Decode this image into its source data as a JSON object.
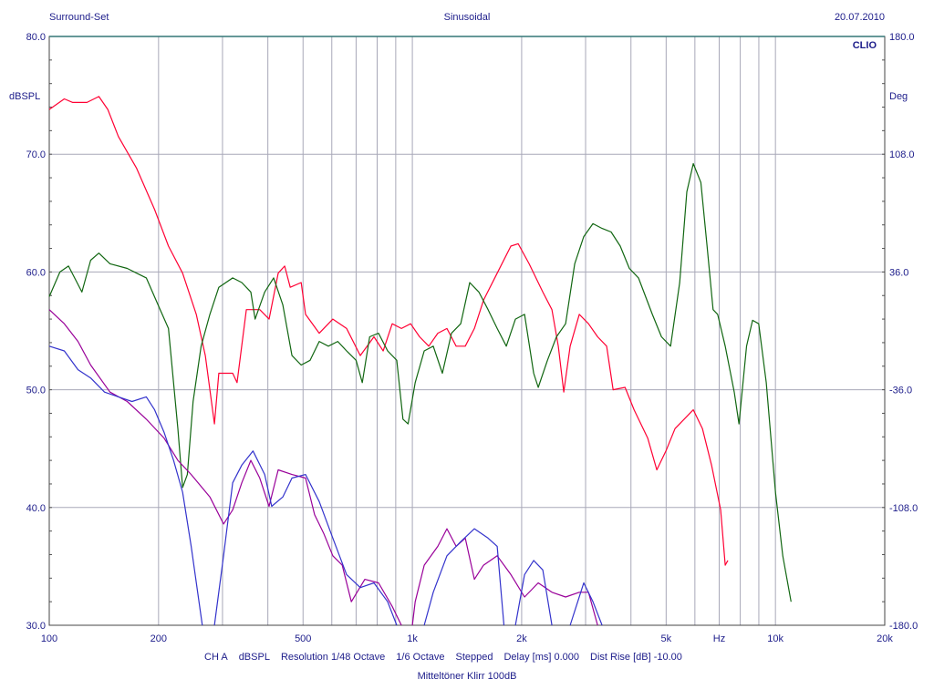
{
  "header": {
    "left": "Surround-Set",
    "center": "Sinusoidal",
    "right": "20.07.2010",
    "brand": "CLIO"
  },
  "footer": {
    "settings": [
      "CH A",
      "dBSPL",
      "Resolution 1/48 Octave",
      "1/6 Octave",
      "Stepped",
      "Delay [ms] 0.000",
      "Dist Rise [dB] -10.00"
    ],
    "title": "Mitteltöner Klirr 100dB"
  },
  "colors": {
    "text": "#1c1c8a",
    "grid": "#a8a8b8",
    "red": "#ff0033",
    "green": "#116611",
    "purple": "#990099",
    "blue": "#3333cc"
  },
  "chart_data": {
    "type": "line",
    "title": "Sinusoidal",
    "xlabel": "Hz",
    "ylabel": "dBSPL",
    "y2label": "Deg",
    "xscale": "log",
    "xlim": [
      100,
      20000
    ],
    "ylim": [
      30,
      80
    ],
    "y2lim": [
      -180,
      180
    ],
    "grid": true,
    "x_ticks": [
      {
        "v": 100,
        "label": "100"
      },
      {
        "v": 200,
        "label": "200"
      },
      {
        "v": 500,
        "label": "500"
      },
      {
        "v": 1000,
        "label": "1k"
      },
      {
        "v": 2000,
        "label": "2k"
      },
      {
        "v": 5000,
        "label": "5k"
      },
      {
        "v": 7000,
        "label": "Hz"
      },
      {
        "v": 10000,
        "label": "10k"
      },
      {
        "v": 20000,
        "label": "20k"
      }
    ],
    "x_grid": [
      200,
      300,
      400,
      500,
      600,
      700,
      800,
      900,
      1000,
      2000,
      3000,
      4000,
      5000,
      6000,
      7000,
      8000,
      9000,
      10000
    ],
    "y_ticks": [
      {
        "v": 80,
        "label": "80.0"
      },
      {
        "v": 70,
        "label": "70.0"
      },
      {
        "v": 60,
        "label": "60.0"
      },
      {
        "v": 50,
        "label": "50.0"
      },
      {
        "v": 40,
        "label": "40.0"
      },
      {
        "v": 30,
        "label": "30.0"
      }
    ],
    "y2_ticks": [
      {
        "v": 180,
        "label": "180.0"
      },
      {
        "v": 108,
        "label": "108.0"
      },
      {
        "v": 36,
        "label": "36.0"
      },
      {
        "v": -36,
        "label": "-36.0"
      },
      {
        "v": -108,
        "label": "-108.0"
      },
      {
        "v": -180,
        "label": "-180.0"
      }
    ],
    "series": [
      {
        "id": "red",
        "color": "#ff0033",
        "points": [
          [
            100,
            73.8
          ],
          [
            110,
            74.7
          ],
          [
            116,
            74.4
          ],
          [
            127,
            74.4
          ],
          [
            137,
            74.9
          ],
          [
            145,
            73.8
          ],
          [
            155,
            71.5
          ],
          [
            174,
            68.8
          ],
          [
            195,
            65.3
          ],
          [
            213,
            62.2
          ],
          [
            233,
            59.9
          ],
          [
            254,
            56.4
          ],
          [
            269,
            52.9
          ],
          [
            285,
            47.1
          ],
          [
            293,
            51.4
          ],
          [
            320,
            51.4
          ],
          [
            329,
            50.6
          ],
          [
            349,
            56.8
          ],
          [
            380,
            56.8
          ],
          [
            403,
            56.0
          ],
          [
            427,
            59.9
          ],
          [
            445,
            60.5
          ],
          [
            461,
            58.7
          ],
          [
            494,
            59.1
          ],
          [
            508,
            56.4
          ],
          [
            554,
            54.8
          ],
          [
            604,
            56.0
          ],
          [
            659,
            55.2
          ],
          [
            719,
            52.9
          ],
          [
            784,
            54.5
          ],
          [
            831,
            53.3
          ],
          [
            880,
            55.6
          ],
          [
            933,
            55.2
          ],
          [
            989,
            55.6
          ],
          [
            1047,
            54.5
          ],
          [
            1110,
            53.7
          ],
          [
            1175,
            54.8
          ],
          [
            1245,
            55.2
          ],
          [
            1320,
            53.7
          ],
          [
            1399,
            53.7
          ],
          [
            1482,
            55.2
          ],
          [
            1570,
            57.6
          ],
          [
            1713,
            59.9
          ],
          [
            1868,
            62.2
          ],
          [
            1956,
            62.4
          ],
          [
            2097,
            60.7
          ],
          [
            2287,
            58.3
          ],
          [
            2423,
            56.8
          ],
          [
            2524,
            53.7
          ],
          [
            2613,
            49.8
          ],
          [
            2721,
            53.7
          ],
          [
            2883,
            56.4
          ],
          [
            3055,
            55.6
          ],
          [
            3237,
            54.5
          ],
          [
            3429,
            53.7
          ],
          [
            3573,
            50.0
          ],
          [
            3853,
            50.2
          ],
          [
            4081,
            48.3
          ],
          [
            4448,
            45.9
          ],
          [
            4713,
            43.2
          ],
          [
            4994,
            44.8
          ],
          [
            5291,
            46.7
          ],
          [
            5606,
            47.5
          ],
          [
            5940,
            48.3
          ],
          [
            6293,
            46.7
          ],
          [
            6668,
            43.6
          ],
          [
            7065,
            39.8
          ],
          [
            7273,
            35.1
          ],
          [
            7397,
            35.5
          ]
        ]
      },
      {
        "id": "green",
        "color": "#116611",
        "points": [
          [
            100,
            57.9
          ],
          [
            107,
            60.0
          ],
          [
            113,
            60.5
          ],
          [
            123,
            58.3
          ],
          [
            130,
            61.0
          ],
          [
            137,
            61.6
          ],
          [
            147,
            60.7
          ],
          [
            164,
            60.3
          ],
          [
            174,
            59.9
          ],
          [
            185,
            59.5
          ],
          [
            202,
            56.8
          ],
          [
            213,
            55.2
          ],
          [
            226,
            46.7
          ],
          [
            233,
            41.7
          ],
          [
            240,
            42.8
          ],
          [
            249,
            49.0
          ],
          [
            262,
            53.7
          ],
          [
            277,
            56.4
          ],
          [
            293,
            58.7
          ],
          [
            320,
            59.5
          ],
          [
            339,
            59.1
          ],
          [
            359,
            58.3
          ],
          [
            369,
            56.0
          ],
          [
            392,
            58.3
          ],
          [
            415,
            59.5
          ],
          [
            440,
            57.2
          ],
          [
            466,
            52.9
          ],
          [
            494,
            52.1
          ],
          [
            523,
            52.5
          ],
          [
            554,
            54.1
          ],
          [
            587,
            53.7
          ],
          [
            623,
            54.1
          ],
          [
            659,
            53.3
          ],
          [
            700,
            52.5
          ],
          [
            728,
            50.6
          ],
          [
            763,
            54.5
          ],
          [
            807,
            54.8
          ],
          [
            855,
            53.3
          ],
          [
            906,
            52.5
          ],
          [
            942,
            47.5
          ],
          [
            973,
            47.1
          ],
          [
            1018,
            50.6
          ],
          [
            1078,
            53.3
          ],
          [
            1142,
            53.7
          ],
          [
            1210,
            51.4
          ],
          [
            1282,
            54.8
          ],
          [
            1359,
            55.6
          ],
          [
            1439,
            59.1
          ],
          [
            1525,
            58.3
          ],
          [
            1616,
            56.8
          ],
          [
            1713,
            55.2
          ],
          [
            1815,
            53.7
          ],
          [
            1923,
            56.0
          ],
          [
            2037,
            56.4
          ],
          [
            2158,
            51.4
          ],
          [
            2222,
            50.2
          ],
          [
            2355,
            52.5
          ],
          [
            2494,
            54.5
          ],
          [
            2643,
            55.6
          ],
          [
            2800,
            60.7
          ],
          [
            2966,
            63.0
          ],
          [
            3143,
            64.1
          ],
          [
            3330,
            63.7
          ],
          [
            3528,
            63.4
          ],
          [
            3738,
            62.2
          ],
          [
            3960,
            60.3
          ],
          [
            4196,
            59.5
          ],
          [
            4581,
            56.4
          ],
          [
            4854,
            54.5
          ],
          [
            5143,
            53.7
          ],
          [
            5449,
            59.1
          ],
          [
            5701,
            66.8
          ],
          [
            5940,
            69.2
          ],
          [
            6230,
            67.6
          ],
          [
            6481,
            62.2
          ],
          [
            6735,
            56.8
          ],
          [
            6930,
            56.4
          ],
          [
            7273,
            53.7
          ],
          [
            7700,
            49.8
          ],
          [
            7935,
            47.1
          ],
          [
            8325,
            53.7
          ],
          [
            8650,
            55.9
          ],
          [
            8990,
            55.6
          ],
          [
            9437,
            50.6
          ],
          [
            10000,
            41.3
          ],
          [
            10475,
            35.9
          ],
          [
            11040,
            32.0
          ]
        ]
      },
      {
        "id": "purple",
        "color": "#990099",
        "points": [
          [
            100,
            56.8
          ],
          [
            110,
            55.6
          ],
          [
            120,
            54.1
          ],
          [
            130,
            52.1
          ],
          [
            147,
            49.8
          ],
          [
            164,
            49.0
          ],
          [
            185,
            47.5
          ],
          [
            207,
            45.9
          ],
          [
            226,
            44.0
          ],
          [
            246,
            42.8
          ],
          [
            277,
            40.9
          ],
          [
            302,
            38.6
          ],
          [
            320,
            39.8
          ],
          [
            339,
            42.1
          ],
          [
            359,
            44.0
          ],
          [
            380,
            42.5
          ],
          [
            403,
            40.1
          ],
          [
            427,
            43.2
          ],
          [
            466,
            42.8
          ],
          [
            508,
            42.5
          ],
          [
            538,
            39.4
          ],
          [
            570,
            37.8
          ],
          [
            604,
            35.9
          ],
          [
            641,
            35.1
          ],
          [
            679,
            32.0
          ],
          [
            740,
            33.9
          ],
          [
            807,
            33.6
          ],
          [
            880,
            31.6
          ],
          [
            933,
            30.0
          ],
          null,
          [
            1000,
            30.0
          ],
          [
            1018,
            32.0
          ],
          [
            1078,
            35.1
          ],
          [
            1175,
            36.7
          ],
          [
            1245,
            38.2
          ],
          [
            1320,
            36.7
          ],
          [
            1399,
            37.4
          ],
          [
            1482,
            33.9
          ],
          [
            1570,
            35.1
          ],
          [
            1713,
            35.9
          ],
          [
            1868,
            34.3
          ],
          [
            2037,
            32.4
          ],
          [
            2222,
            33.6
          ],
          [
            2423,
            32.8
          ],
          [
            2643,
            32.4
          ],
          [
            2883,
            32.8
          ],
          [
            3055,
            32.8
          ],
          [
            3237,
            30.0
          ]
        ]
      },
      {
        "id": "blue",
        "color": "#3333cc",
        "points": [
          [
            100,
            53.7
          ],
          [
            110,
            53.3
          ],
          [
            120,
            51.7
          ],
          [
            130,
            51.0
          ],
          [
            142,
            49.8
          ],
          [
            155,
            49.4
          ],
          [
            169,
            49.0
          ],
          [
            185,
            49.4
          ],
          [
            195,
            48.3
          ],
          [
            207,
            46.4
          ],
          [
            220,
            44.0
          ],
          [
            233,
            41.3
          ],
          [
            246,
            36.7
          ],
          [
            264,
            30.0
          ],
          null,
          [
            285,
            30.0
          ],
          [
            302,
            35.9
          ],
          [
            320,
            42.1
          ],
          [
            339,
            43.6
          ],
          [
            364,
            44.8
          ],
          [
            392,
            42.8
          ],
          [
            410,
            40.1
          ],
          [
            440,
            40.9
          ],
          [
            466,
            42.5
          ],
          [
            508,
            42.8
          ],
          [
            554,
            40.5
          ],
          [
            604,
            37.4
          ],
          [
            659,
            34.3
          ],
          [
            719,
            33.2
          ],
          [
            784,
            33.6
          ],
          [
            855,
            32.0
          ],
          [
            906,
            30.0
          ],
          null,
          [
            1078,
            30.0
          ],
          [
            1142,
            32.8
          ],
          [
            1245,
            35.9
          ],
          [
            1359,
            37.1
          ],
          [
            1482,
            38.2
          ],
          [
            1616,
            37.4
          ],
          [
            1713,
            36.7
          ],
          [
            1788,
            30.0
          ],
          null,
          [
            1923,
            30.0
          ],
          [
            2037,
            34.3
          ],
          [
            2158,
            35.5
          ],
          [
            2287,
            34.7
          ],
          [
            2423,
            30.0
          ],
          null,
          [
            2721,
            30.0
          ],
          [
            2966,
            33.6
          ],
          [
            3143,
            32.0
          ],
          [
            3330,
            30.0
          ]
        ]
      }
    ]
  }
}
